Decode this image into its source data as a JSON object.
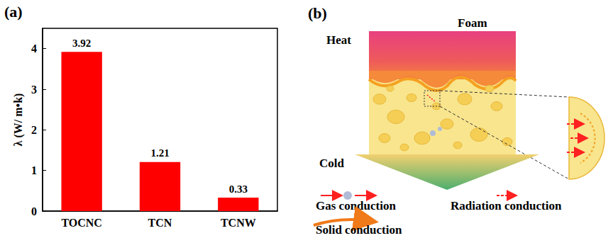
{
  "chart_data": {
    "type": "bar",
    "categories": [
      "TOCNC",
      "TCN",
      "TCNW"
    ],
    "values": [
      3.92,
      1.21,
      0.33
    ],
    "color": "#ff0000",
    "y_label": "λ (W/ m•k)",
    "ylim": [
      0,
      4.5
    ],
    "yticks": [
      0,
      1,
      2,
      3,
      4
    ],
    "grid": false,
    "data_labels": true
  },
  "panel_labels": [
    "(a)",
    "(b)"
  ],
  "diagram": {
    "heat": "Heat",
    "foam": "Foam",
    "cold": "Cold",
    "legend": {
      "gas": "Gas conduction",
      "radiation": "Radiation conduction",
      "solid": "Solid conduction"
    }
  }
}
